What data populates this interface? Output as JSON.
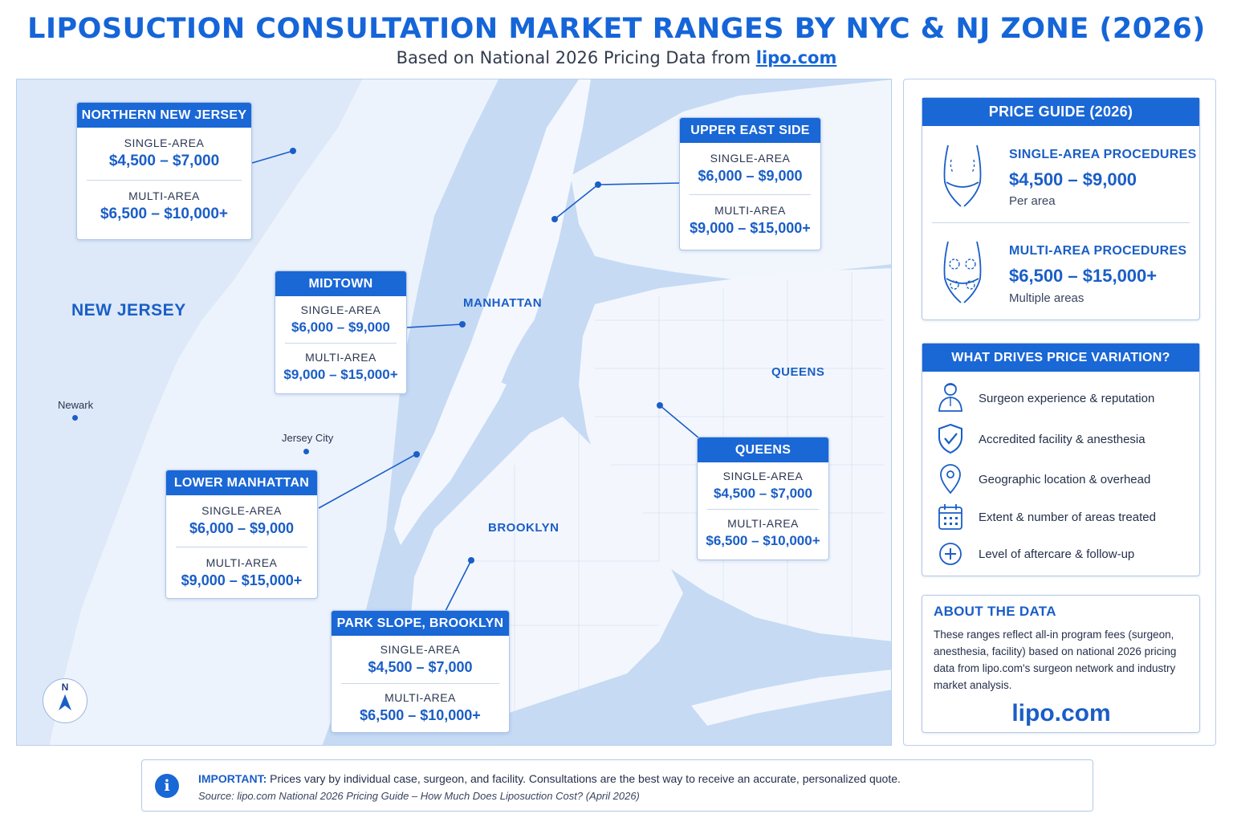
{
  "header": {
    "title": "LIPOSUCTION CONSULTATION MARKET RANGES BY NYC & NJ ZONE (2026)",
    "subtitle_prefix": "Based on National 2026 Pricing Data from ",
    "subtitle_link": "lipo.com"
  },
  "map": {
    "place_labels": {
      "new_jersey": "NEW JERSEY",
      "manhattan": "MANHATTAN",
      "queens": "QUEENS",
      "brooklyn": "BROOKLYN",
      "newark": "Newark",
      "jersey_city": "Jersey City"
    },
    "compass": "N",
    "zones": [
      {
        "name": "NORTHERN NEW JERSEY",
        "single_label": "SINGLE-AREA",
        "single": "$4,500 – $7,000",
        "multi_label": "MULTI-AREA",
        "multi": "$6,500 – $10,000+"
      },
      {
        "name": "UPPER EAST SIDE",
        "single_label": "SINGLE-AREA",
        "single": "$6,000 – $9,000",
        "multi_label": "MULTI-AREA",
        "multi": "$9,000 – $15,000+"
      },
      {
        "name": "MIDTOWN",
        "single_label": "SINGLE-AREA",
        "single": "$6,000 – $9,000",
        "multi_label": "MULTI-AREA",
        "multi": "$9,000 – $15,000+"
      },
      {
        "name": "LOWER MANHATTAN",
        "single_label": "SINGLE-AREA",
        "single": "$6,000 – $9,000",
        "multi_label": "MULTI-AREA",
        "multi": "$9,000 – $15,000+"
      },
      {
        "name": "QUEENS",
        "single_label": "SINGLE-AREA",
        "single": "$4,500 – $7,000",
        "multi_label": "MULTI-AREA",
        "multi": "$6,500 – $10,000+"
      },
      {
        "name": "PARK SLOPE, BROOKLYN",
        "single_label": "SINGLE-AREA",
        "single": "$4,500 – $7,000",
        "multi_label": "MULTI-AREA",
        "multi": "$6,500 – $10,000+"
      }
    ]
  },
  "price_guide": {
    "title": "PRICE GUIDE (2026)",
    "single": {
      "title": "SINGLE-AREA PROCEDURES",
      "range": "$4,500 – $9,000",
      "note": "Per area"
    },
    "multi": {
      "title": "MULTI-AREA PROCEDURES",
      "range": "$6,500 – $15,000+",
      "note": "Multiple areas"
    }
  },
  "drivers": {
    "title": "WHAT DRIVES PRICE VARIATION?",
    "items": [
      {
        "icon": "surgeon-icon",
        "text": "Surgeon experience & reputation"
      },
      {
        "icon": "shield-check-icon",
        "text": "Accredited facility & anesthesia"
      },
      {
        "icon": "location-pin-icon",
        "text": "Geographic location & overhead"
      },
      {
        "icon": "calendar-icon",
        "text": "Extent & number of areas treated"
      },
      {
        "icon": "plus-circle-icon",
        "text": "Level of aftercare & follow-up"
      }
    ]
  },
  "about": {
    "title": "ABOUT THE DATA",
    "text": "These ranges reflect all-in program fees (surgeon, anesthesia, facility) based on national 2026 pricing data from lipo.com's surgeon network and industry market analysis.",
    "logo": "lipo.com"
  },
  "notice": {
    "label": "IMPORTANT:",
    "text": " Prices vary by individual case, surgeon, and facility. Consultations are the best way to receive an accurate, personalized quote.",
    "source": "Source: lipo.com National 2026 Pricing Guide – How Much Does Liposuction Cost? (April 2026)"
  },
  "colors": {
    "accent": "#1a67d6",
    "water": "#c9dcf5",
    "land": "#f2f7fd"
  }
}
